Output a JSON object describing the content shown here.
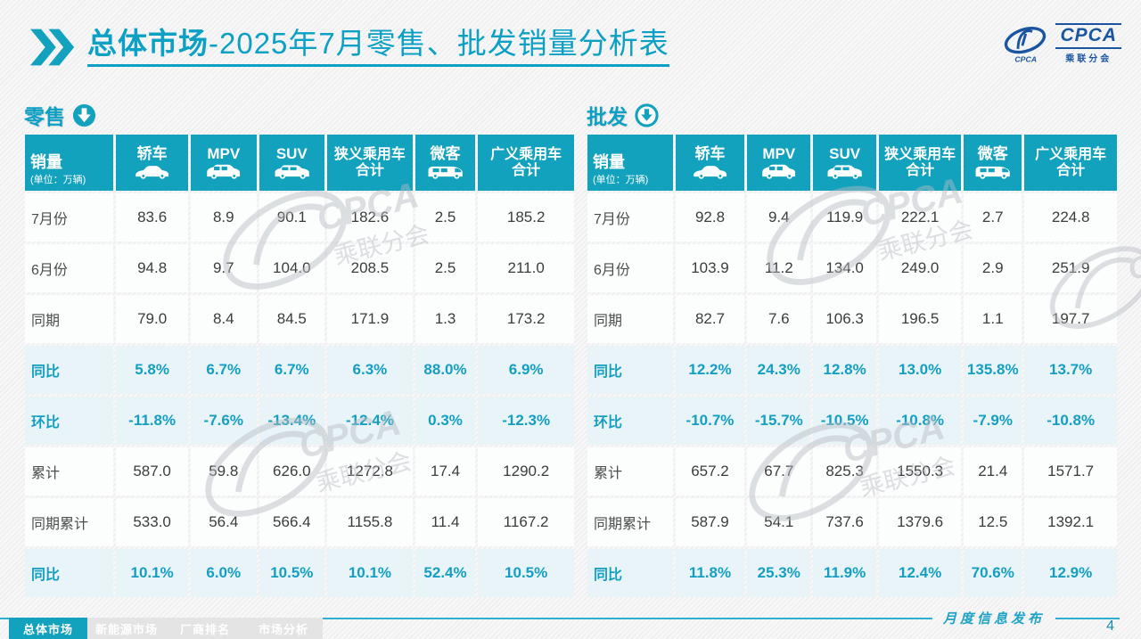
{
  "header": {
    "title_bold": "总体市场",
    "title_rest": "-2025年7月零售、批发销量分析表",
    "logo": {
      "name": "CPCA",
      "cn": "乘联分会"
    }
  },
  "colors": {
    "accent": "#12A2BE",
    "percent_text": "#149FC2",
    "percent_bg": "#E9F4F9",
    "logo_blue": "#1B55A0"
  },
  "tables": [
    {
      "label": "零售",
      "arrow_icon": "circle-down-filled-icon",
      "first_column": {
        "label": "销量",
        "sub": "(单位：万辆)"
      },
      "columns": [
        {
          "label": "轿车",
          "icon": "sedan-icon"
        },
        {
          "label": "MPV",
          "icon": "mpv-icon"
        },
        {
          "label": "SUV",
          "icon": "suv-icon"
        },
        {
          "label": "狭义乘用车\n合计"
        },
        {
          "label": "微客",
          "icon": "van-icon"
        },
        {
          "label": "广义乘用车\n合计"
        }
      ],
      "rows": [
        {
          "label": "7月份",
          "type": "data",
          "values": [
            "83.6",
            "8.9",
            "90.1",
            "182.6",
            "2.5",
            "185.2"
          ]
        },
        {
          "label": "6月份",
          "type": "data",
          "values": [
            "94.8",
            "9.7",
            "104.0",
            "208.5",
            "2.5",
            "211.0"
          ]
        },
        {
          "label": "同期",
          "type": "data",
          "values": [
            "79.0",
            "8.4",
            "84.5",
            "171.9",
            "1.3",
            "173.2"
          ]
        },
        {
          "label": "同比",
          "type": "percent",
          "values": [
            "5.8%",
            "6.7%",
            "6.7%",
            "6.3%",
            "88.0%",
            "6.9%"
          ]
        },
        {
          "label": "环比",
          "type": "percent",
          "values": [
            "-11.8%",
            "-7.6%",
            "-13.4%",
            "-12.4%",
            "0.3%",
            "-12.3%"
          ]
        },
        {
          "label": "累计",
          "type": "data",
          "values": [
            "587.0",
            "59.8",
            "626.0",
            "1272.8",
            "17.4",
            "1290.2"
          ]
        },
        {
          "label": "同期累计",
          "type": "data",
          "values": [
            "533.0",
            "56.4",
            "566.4",
            "1155.8",
            "11.4",
            "1167.2"
          ]
        },
        {
          "label": "同比",
          "type": "percent",
          "values": [
            "10.1%",
            "6.0%",
            "10.5%",
            "10.1%",
            "52.4%",
            "10.5%"
          ]
        }
      ]
    },
    {
      "label": "批发",
      "arrow_icon": "circle-down-outline-icon",
      "first_column": {
        "label": "销量",
        "sub": "(单位：万辆)"
      },
      "columns": [
        {
          "label": "轿车",
          "icon": "sedan-icon"
        },
        {
          "label": "MPV",
          "icon": "mpv-icon"
        },
        {
          "label": "SUV",
          "icon": "suv-icon"
        },
        {
          "label": "狭义乘用车\n合计"
        },
        {
          "label": "微客",
          "icon": "van-icon"
        },
        {
          "label": "广义乘用车\n合计"
        }
      ],
      "rows": [
        {
          "label": "7月份",
          "type": "data",
          "values": [
            "92.8",
            "9.4",
            "119.9",
            "222.1",
            "2.7",
            "224.8"
          ]
        },
        {
          "label": "6月份",
          "type": "data",
          "values": [
            "103.9",
            "11.2",
            "134.0",
            "249.0",
            "2.9",
            "251.9"
          ]
        },
        {
          "label": "同期",
          "type": "data",
          "values": [
            "82.7",
            "7.6",
            "106.3",
            "196.5",
            "1.1",
            "197.7"
          ]
        },
        {
          "label": "同比",
          "type": "percent",
          "values": [
            "12.2%",
            "24.3%",
            "12.8%",
            "13.0%",
            "135.8%",
            "13.7%"
          ]
        },
        {
          "label": "环比",
          "type": "percent",
          "values": [
            "-10.7%",
            "-15.7%",
            "-10.5%",
            "-10.8%",
            "-7.9%",
            "-10.8%"
          ]
        },
        {
          "label": "累计",
          "type": "data",
          "values": [
            "657.2",
            "67.7",
            "825.3",
            "1550.3",
            "21.4",
            "1571.7"
          ]
        },
        {
          "label": "同期累计",
          "type": "data",
          "values": [
            "587.9",
            "54.1",
            "737.6",
            "1379.6",
            "12.5",
            "1392.1"
          ]
        },
        {
          "label": "同比",
          "type": "percent",
          "values": [
            "11.8%",
            "25.3%",
            "11.9%",
            "12.4%",
            "70.6%",
            "12.9%"
          ]
        }
      ]
    }
  ],
  "footer": {
    "publish_label": "月度信息发布",
    "page_number": "4",
    "tabs": [
      {
        "label": "总体市场",
        "active": true
      },
      {
        "label": "新能源市场",
        "active": false
      },
      {
        "label": "厂商排名",
        "active": false
      },
      {
        "label": "市场分析",
        "active": false
      }
    ]
  }
}
